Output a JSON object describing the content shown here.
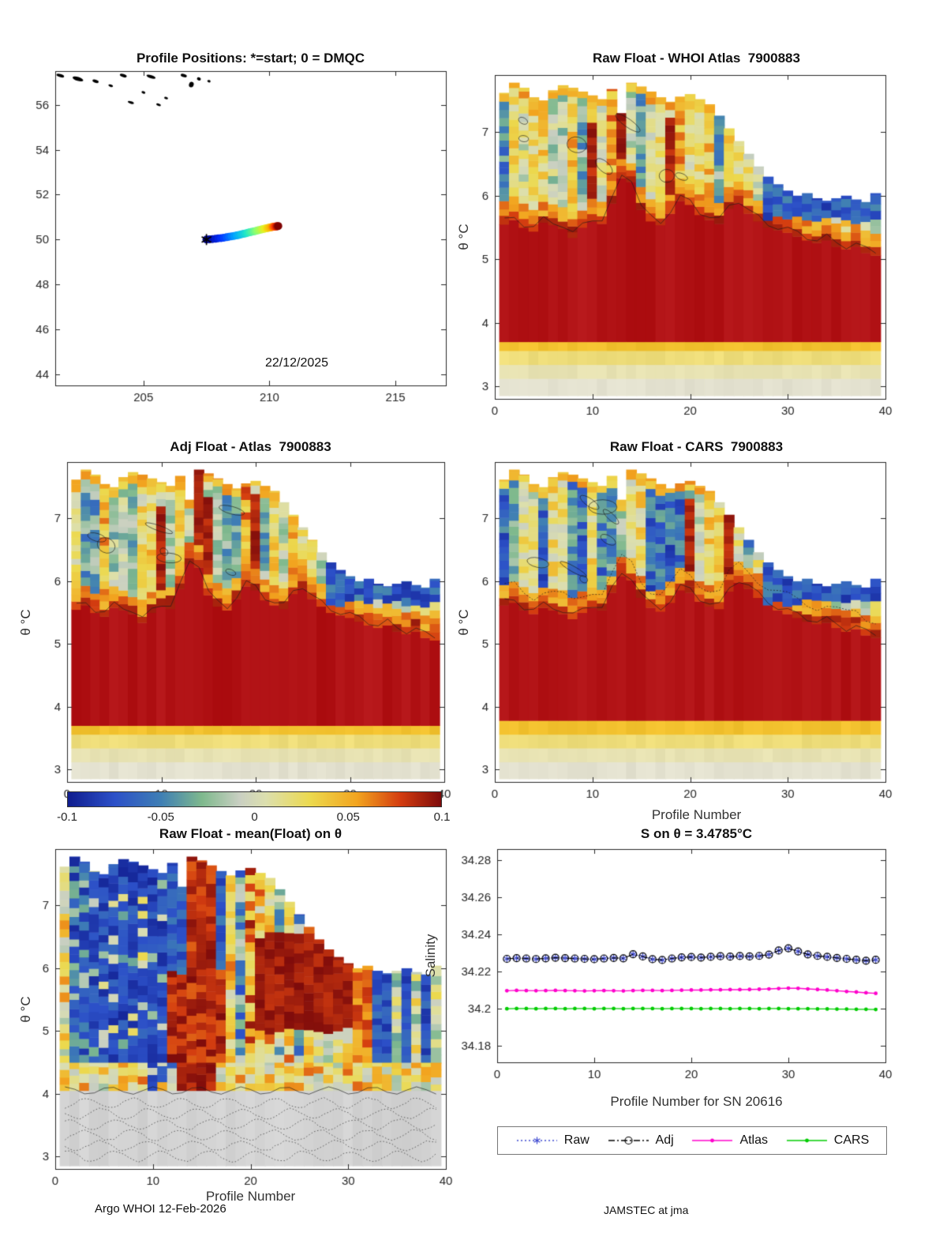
{
  "page": {
    "footer_left": "Argo WHOI 12-Feb-2026",
    "footer_right": "JAMSTEC at jma"
  },
  "colors": {
    "axis": "#262626",
    "red_core": "#b11215",
    "anomaly_stops": [
      [
        -1,
        "#101d8e"
      ],
      [
        -0.75,
        "#2c50c8"
      ],
      [
        -0.5,
        "#3f7fb4"
      ],
      [
        -0.28,
        "#7fb98d"
      ],
      [
        -0.08,
        "#c9cfc2"
      ],
      [
        0.06,
        "#dcdfae"
      ],
      [
        0.3,
        "#ecd94e"
      ],
      [
        0.55,
        "#f2a41f"
      ],
      [
        0.78,
        "#d43d10"
      ],
      [
        1,
        "#7e0b0b"
      ]
    ],
    "jet_stops": [
      [
        0,
        "#00008f"
      ],
      [
        0.14,
        "#0030ff"
      ],
      [
        0.28,
        "#00a4ff"
      ],
      [
        0.42,
        "#22e8c8"
      ],
      [
        0.55,
        "#8cff70"
      ],
      [
        0.68,
        "#e8f020"
      ],
      [
        0.8,
        "#ffb000"
      ],
      [
        0.9,
        "#ff3800"
      ],
      [
        1,
        "#7f0000"
      ]
    ]
  },
  "colorbar": {
    "min": -0.1,
    "max": 0.1,
    "ticks": [
      "-0.1",
      "-0.05",
      "0",
      "0.05",
      "0.1"
    ]
  },
  "chart_data": [
    {
      "id": "positions",
      "type": "scatter",
      "title": "Profile Positions: *=start; 0 = DMQC",
      "annotation": "22/12/2025",
      "xlim": [
        201.5,
        217.0
      ],
      "ylim": [
        43.5,
        57.5
      ],
      "xticks": [
        205,
        210,
        215
      ],
      "yticks": [
        44,
        46,
        48,
        50,
        52,
        54,
        56
      ],
      "colormap": "jet",
      "start_marker": "*",
      "lon": [
        207.5,
        207.62,
        207.74,
        207.86,
        207.97,
        208.08,
        208.19,
        208.3,
        208.4,
        208.5,
        208.6,
        208.7,
        208.79,
        208.88,
        208.97,
        209.06,
        209.14,
        209.22,
        209.3,
        209.38,
        209.45,
        209.52,
        209.59,
        209.66,
        209.72,
        209.78,
        209.84,
        209.9,
        209.95,
        210.0,
        210.05,
        210.1,
        210.14,
        210.18,
        210.22,
        210.26,
        210.29,
        210.32,
        210.35
      ],
      "lat": [
        50.0,
        50.01,
        50.02,
        50.03,
        50.05,
        50.06,
        50.08,
        50.1,
        50.12,
        50.14,
        50.16,
        50.18,
        50.2,
        50.23,
        50.25,
        50.27,
        50.3,
        50.32,
        50.34,
        50.36,
        50.38,
        50.4,
        50.42,
        50.44,
        50.46,
        50.47,
        50.49,
        50.5,
        50.52,
        50.53,
        50.54,
        50.55,
        50.56,
        50.57,
        50.58,
        50.58,
        50.59,
        50.59,
        50.6
      ],
      "coast": [
        [
          201.7,
          57.3,
          10,
          4
        ],
        [
          202.4,
          57.15,
          14,
          5
        ],
        [
          203.1,
          57.05,
          8,
          4
        ],
        [
          203.7,
          56.85,
          6,
          3
        ],
        [
          204.2,
          57.3,
          9,
          4
        ],
        [
          204.5,
          56.1,
          8,
          3
        ],
        [
          205.0,
          56.55,
          5,
          3
        ],
        [
          205.3,
          57.25,
          12,
          4
        ],
        [
          205.6,
          56.0,
          6,
          3
        ],
        [
          205.9,
          56.3,
          5,
          3
        ],
        [
          206.6,
          57.3,
          8,
          4
        ],
        [
          206.9,
          56.9,
          6,
          7
        ],
        [
          207.2,
          57.15,
          5,
          4
        ],
        [
          207.6,
          57.05,
          4,
          3
        ]
      ]
    },
    {
      "id": "raw_atlas",
      "type": "heatmap",
      "title": "Raw Float - WHOI Atlas  7900883",
      "ylabel": "θ °C",
      "xlim": [
        0,
        40
      ],
      "ylim": [
        2.8,
        7.9
      ],
      "xticks": [
        0,
        10,
        20,
        30,
        40
      ],
      "yticks": [
        3,
        4,
        5,
        6,
        7
      ],
      "value_range": [
        -0.1,
        0.1
      ],
      "style": "atlas",
      "seed": 7,
      "n_profiles": 39,
      "floor": 2.85,
      "yellow_base": 3.34,
      "red_base": 3.7,
      "top_envelope": [
        7.62,
        7.78,
        7.7,
        7.55,
        7.5,
        7.66,
        7.74,
        7.7,
        7.64,
        7.58,
        7.52,
        7.68,
        7.3,
        7.78,
        7.72,
        7.64,
        7.55,
        7.48,
        7.56,
        7.6,
        7.52,
        7.44,
        7.26,
        7.06,
        6.86,
        6.66,
        6.46,
        6.3,
        6.18,
        6.08,
        6.0,
        6.04,
        5.96,
        5.92,
        5.96,
        6.0,
        5.94,
        5.9,
        6.04
      ],
      "red_top": [
        5.55,
        5.62,
        5.5,
        5.44,
        5.58,
        5.54,
        5.48,
        5.34,
        5.5,
        5.6,
        5.56,
        5.88,
        6.28,
        6.22,
        5.78,
        5.6,
        5.54,
        5.72,
        5.92,
        5.86,
        5.7,
        5.62,
        5.56,
        5.8,
        5.88,
        5.72,
        5.6,
        5.5,
        5.46,
        5.42,
        5.36,
        5.3,
        5.26,
        5.3,
        5.2,
        5.16,
        5.2,
        5.1,
        5.06
      ]
    },
    {
      "id": "adj_atlas",
      "type": "heatmap",
      "title": "Adj Float - Atlas  7900883",
      "ylabel": "θ °C",
      "xlim": [
        0,
        40
      ],
      "ylim": [
        2.8,
        7.9
      ],
      "xticks": [
        0,
        10,
        20,
        30,
        40
      ],
      "yticks": [
        3,
        4,
        5,
        6,
        7
      ],
      "value_range": [
        -0.1,
        0.1
      ],
      "style": "atlas",
      "seed": 13,
      "n_profiles": 39,
      "floor": 2.85,
      "yellow_base": 3.34,
      "red_base": 3.7,
      "top_envelope": [
        7.62,
        7.78,
        7.7,
        7.55,
        7.5,
        7.66,
        7.74,
        7.7,
        7.64,
        7.58,
        7.52,
        7.68,
        7.3,
        7.78,
        7.72,
        7.64,
        7.55,
        7.48,
        7.56,
        7.6,
        7.52,
        7.44,
        7.26,
        7.06,
        6.86,
        6.66,
        6.46,
        6.3,
        6.18,
        6.08,
        6.0,
        6.04,
        5.96,
        5.92,
        5.96,
        6.0,
        5.94,
        5.9,
        6.04
      ],
      "red_top": [
        5.55,
        5.62,
        5.5,
        5.44,
        5.58,
        5.54,
        5.48,
        5.34,
        5.5,
        5.6,
        5.56,
        5.88,
        6.28,
        6.22,
        5.78,
        5.6,
        5.54,
        5.72,
        5.92,
        5.86,
        5.7,
        5.62,
        5.56,
        5.8,
        5.88,
        5.72,
        5.6,
        5.5,
        5.46,
        5.42,
        5.36,
        5.3,
        5.26,
        5.3,
        5.2,
        5.16,
        5.2,
        5.1,
        5.06
      ]
    },
    {
      "id": "raw_cars",
      "type": "heatmap",
      "title": "Raw Float - CARS  7900883",
      "xlabel": "Profile Number",
      "ylabel": "θ °C",
      "xlim": [
        0,
        40
      ],
      "ylim": [
        2.8,
        7.9
      ],
      "xticks": [
        0,
        10,
        20,
        30,
        40
      ],
      "yticks": [
        3,
        4,
        5,
        6,
        7
      ],
      "value_range": [
        -0.1,
        0.1
      ],
      "style": "cars",
      "seed": 21,
      "n_profiles": 39,
      "floor": 2.85,
      "yellow_base": 3.34,
      "red_base": 3.78,
      "top_envelope": [
        7.62,
        7.78,
        7.7,
        7.55,
        7.5,
        7.66,
        7.74,
        7.7,
        7.64,
        7.58,
        7.52,
        7.68,
        7.3,
        7.78,
        7.72,
        7.64,
        7.55,
        7.48,
        7.56,
        7.6,
        7.52,
        7.44,
        7.26,
        7.06,
        6.86,
        6.66,
        6.46,
        6.3,
        6.18,
        6.08,
        6.0,
        6.04,
        5.96,
        5.92,
        5.96,
        6.0,
        5.94,
        5.9,
        6.04
      ],
      "red_top": [
        5.62,
        5.66,
        5.54,
        5.48,
        5.58,
        5.54,
        5.48,
        5.4,
        5.5,
        5.58,
        5.54,
        5.82,
        6.08,
        6.02,
        5.74,
        5.58,
        5.52,
        5.66,
        5.86,
        5.82,
        5.68,
        5.6,
        5.56,
        5.84,
        5.98,
        5.88,
        5.74,
        5.62,
        5.54,
        5.48,
        5.42,
        5.36,
        5.32,
        5.34,
        5.26,
        5.2,
        5.24,
        5.14,
        5.1
      ]
    },
    {
      "id": "raw_mean",
      "type": "heatmap",
      "title": "Raw Float - mean(Float) on θ",
      "xlabel": "Profile Number",
      "ylabel": "θ °C",
      "xlim": [
        0,
        40
      ],
      "ylim": [
        2.8,
        7.9
      ],
      "xticks": [
        0,
        10,
        20,
        30,
        40
      ],
      "yticks": [
        3,
        4,
        5,
        6,
        7
      ],
      "value_range": [
        -0.1,
        0.1
      ],
      "style": "mean",
      "seed": 31,
      "n_profiles": 39,
      "floor": 2.85,
      "gray_top": 4.05,
      "top_envelope": [
        7.62,
        7.78,
        7.7,
        7.55,
        7.5,
        7.66,
        7.74,
        7.7,
        7.64,
        7.58,
        7.52,
        7.68,
        7.3,
        7.78,
        7.72,
        7.64,
        7.55,
        7.48,
        7.56,
        7.6,
        7.52,
        7.44,
        7.26,
        7.06,
        6.86,
        6.66,
        6.46,
        6.3,
        6.18,
        6.08,
        6.0,
        6.04,
        5.96,
        5.92,
        5.96,
        6.0,
        5.94,
        5.9,
        6.04
      ]
    },
    {
      "id": "s_on_theta",
      "type": "line",
      "title": "S on θ = 3.4785°C",
      "xlabel": "Profile Number for SN 20616",
      "ylabel": "Salinity",
      "xlim": [
        0,
        40
      ],
      "ylim": [
        34.171,
        34.286
      ],
      "xticks": [
        0,
        10,
        20,
        30,
        40
      ],
      "yticks": [
        34.18,
        34.2,
        34.22,
        34.24,
        34.26,
        34.28
      ],
      "x": [
        1,
        2,
        3,
        4,
        5,
        6,
        7,
        8,
        9,
        10,
        11,
        12,
        13,
        14,
        15,
        16,
        17,
        18,
        19,
        20,
        21,
        22,
        23,
        24,
        25,
        26,
        27,
        28,
        29,
        30,
        31,
        32,
        33,
        34,
        35,
        36,
        37,
        38,
        39
      ],
      "series": [
        {
          "name": "Raw",
          "color": "#3a45cf",
          "line": "dotted",
          "marker": "asterisk",
          "values": [
            34.2268,
            34.2272,
            34.227,
            34.2267,
            34.2271,
            34.2274,
            34.2272,
            34.227,
            34.2268,
            34.2266,
            34.227,
            34.2273,
            34.2271,
            34.2293,
            34.2281,
            34.2266,
            34.2262,
            34.227,
            34.2276,
            34.2278,
            34.2275,
            34.2279,
            34.2282,
            34.228,
            34.2283,
            34.2281,
            34.2284,
            34.2291,
            34.2313,
            34.2325,
            34.2308,
            34.2292,
            34.2284,
            34.2279,
            34.2273,
            34.2268,
            34.2263,
            34.2258,
            34.2263
          ]
        },
        {
          "name": "Adj",
          "color": "#000000",
          "line": "dashdot",
          "marker": "circle",
          "values": [
            34.2268,
            34.2272,
            34.227,
            34.2267,
            34.2271,
            34.2274,
            34.2272,
            34.227,
            34.2268,
            34.2266,
            34.227,
            34.2273,
            34.2271,
            34.2293,
            34.2281,
            34.2266,
            34.2262,
            34.227,
            34.2276,
            34.2278,
            34.2275,
            34.2279,
            34.2282,
            34.228,
            34.2283,
            34.2281,
            34.2284,
            34.2291,
            34.2313,
            34.2325,
            34.2308,
            34.2292,
            34.2284,
            34.2279,
            34.2273,
            34.2268,
            34.2263,
            34.2258,
            34.2263
          ]
        },
        {
          "name": "Atlas",
          "color": "#ff00cc",
          "line": "solid",
          "marker": "dot",
          "values": [
            34.2096,
            34.2098,
            34.2097,
            34.2096,
            34.2097,
            34.2098,
            34.2097,
            34.2096,
            34.2095,
            34.2096,
            34.2097,
            34.2096,
            34.2095,
            34.2097,
            34.2098,
            34.2098,
            34.2097,
            34.2098,
            34.2099,
            34.21,
            34.21,
            34.2101,
            34.2101,
            34.2102,
            34.2102,
            34.2103,
            34.2104,
            34.2106,
            34.2108,
            34.211,
            34.2109,
            34.2106,
            34.2103,
            34.21,
            34.2096,
            34.2092,
            34.2089,
            34.2085,
            34.2082
          ]
        },
        {
          "name": "CARS",
          "color": "#00cc00",
          "line": "solid",
          "marker": "dot",
          "values": [
            34.1999,
            34.2,
            34.2,
            34.1999,
            34.2,
            34.2,
            34.1999,
            34.2,
            34.2,
            34.1999,
            34.2,
            34.2,
            34.1999,
            34.2,
            34.2,
            34.2,
            34.1999,
            34.2,
            34.2,
            34.2,
            34.1999,
            34.2,
            34.2,
            34.1999,
            34.2,
            34.2,
            34.1999,
            34.2,
            34.2,
            34.1999,
            34.1999,
            34.1999,
            34.1998,
            34.1998,
            34.1997,
            34.1997,
            34.1996,
            34.1996,
            34.1995
          ]
        }
      ]
    }
  ]
}
